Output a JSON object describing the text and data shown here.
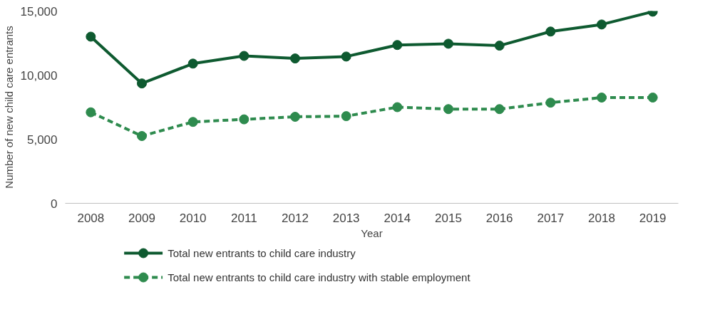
{
  "chart_data": {
    "type": "line",
    "xlabel": "Year",
    "ylabel": "Number of new child care entrants",
    "categories": [
      "2008",
      "2009",
      "2010",
      "2011",
      "2012",
      "2013",
      "2014",
      "2015",
      "2016",
      "2017",
      "2018",
      "2019"
    ],
    "series": [
      {
        "name": "Total new entrants to child care industry",
        "color": "#0e5a30",
        "line_style": "solid",
        "values": [
          13000,
          9350,
          10900,
          11500,
          11300,
          11450,
          12350,
          12450,
          12300,
          13400,
          13950,
          14950
        ]
      },
      {
        "name": "Total new entrants to child care industry with stable employment",
        "color": "#2e8b4e",
        "line_style": "dashed",
        "values": [
          7100,
          5250,
          6350,
          6550,
          6750,
          6800,
          7500,
          7350,
          7350,
          7850,
          8250,
          8250
        ]
      }
    ],
    "ylim": [
      0,
      15000
    ],
    "yticks": [
      {
        "value": 0,
        "label": "0"
      },
      {
        "value": 5000,
        "label": "5,000"
      },
      {
        "value": 10000,
        "label": "10,000"
      },
      {
        "value": 15000,
        "label": "15,000"
      }
    ],
    "grid": false,
    "legend": "bottom",
    "marker": "circle"
  }
}
